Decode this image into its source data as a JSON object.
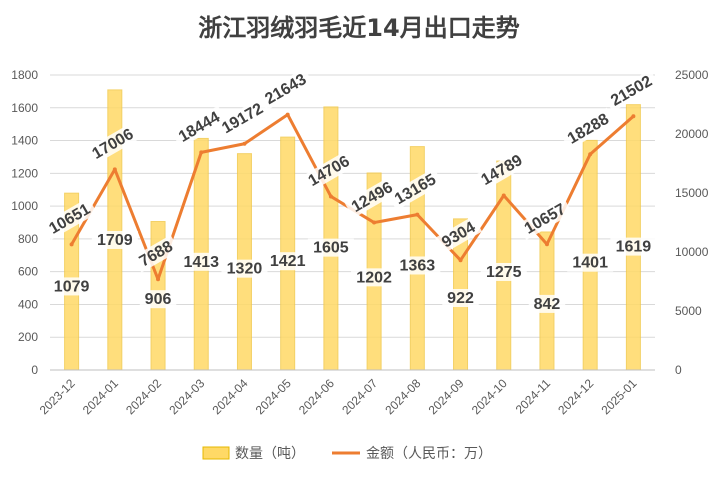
{
  "chart_data": {
    "type": "bar",
    "title": "浙江羽绒羽毛近14月出口走势",
    "categories": [
      "2023-12",
      "2024-01",
      "2024-02",
      "2024-03",
      "2024-04",
      "2024-05",
      "2024-06",
      "2024-07",
      "2024-08",
      "2024-09",
      "2024-10",
      "2024-11",
      "2024-12",
      "2025-01"
    ],
    "series": [
      {
        "name": "数量（吨）",
        "type": "bar",
        "axis": "left",
        "color": "#FFD966",
        "values": [
          1079,
          1709,
          906,
          1413,
          1320,
          1421,
          1605,
          1202,
          1363,
          922,
          1275,
          842,
          1401,
          1619
        ]
      },
      {
        "name": "金额（人民币：万）",
        "type": "line",
        "axis": "right",
        "color": "#ED7D31",
        "values": [
          10651,
          17006,
          7688,
          18444,
          19172,
          21643,
          14706,
          12496,
          13165,
          9304,
          14789,
          10657,
          18288,
          21502
        ]
      }
    ],
    "ylim_left": [
      0,
      1800
    ],
    "yticks_left": [
      "0",
      "200",
      "400",
      "600",
      "800",
      "1000",
      "1200",
      "1400",
      "1600",
      "1800"
    ],
    "ylim_right": [
      0,
      25000
    ],
    "yticks_right": [
      "0",
      "5000",
      "10000",
      "15000",
      "20000",
      "25000"
    ],
    "grid": true,
    "legend": "bottom"
  }
}
